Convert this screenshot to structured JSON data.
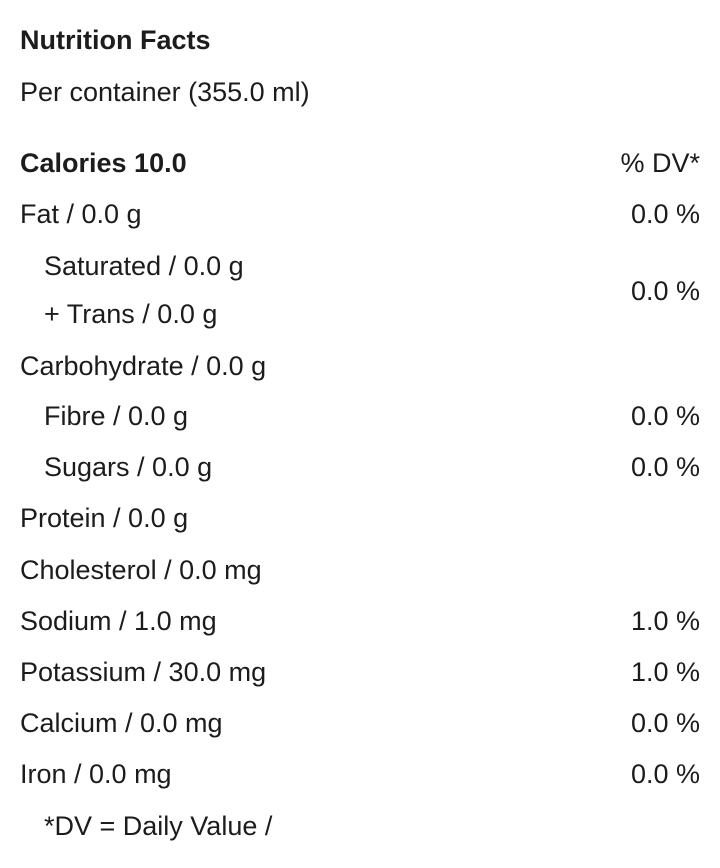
{
  "title": "Nutrition Facts",
  "serving": "Per container (355.0 ml)",
  "calories": "Calories 10.0",
  "dv_header": "% DV*",
  "rows": [
    {
      "label": "Fat / 0.0 g",
      "dv": "0.0 %"
    },
    {
      "label": "Saturated / 0.0 g"
    },
    {
      "label": "+ Trans / 0.0 g",
      "dv": "0.0 %"
    },
    {
      "label": "Carbohydrate / 0.0 g"
    },
    {
      "label": "Fibre / 0.0 g",
      "dv": "0.0 %"
    },
    {
      "label": "Sugars / 0.0 g",
      "dv": "0.0 %"
    },
    {
      "label": "Protein / 0.0 g"
    },
    {
      "label": "Cholesterol / 0.0 mg"
    },
    {
      "label": "Sodium / 1.0 mg",
      "dv": "1.0 %"
    },
    {
      "label": "Potassium / 30.0 mg",
      "dv": "1.0 %"
    },
    {
      "label": "Calcium / 0.0 mg",
      "dv": "0.0 %"
    },
    {
      "label": "Iron / 0.0 mg",
      "dv": "0.0 %"
    }
  ],
  "footnote": "*DV = Daily Value /"
}
